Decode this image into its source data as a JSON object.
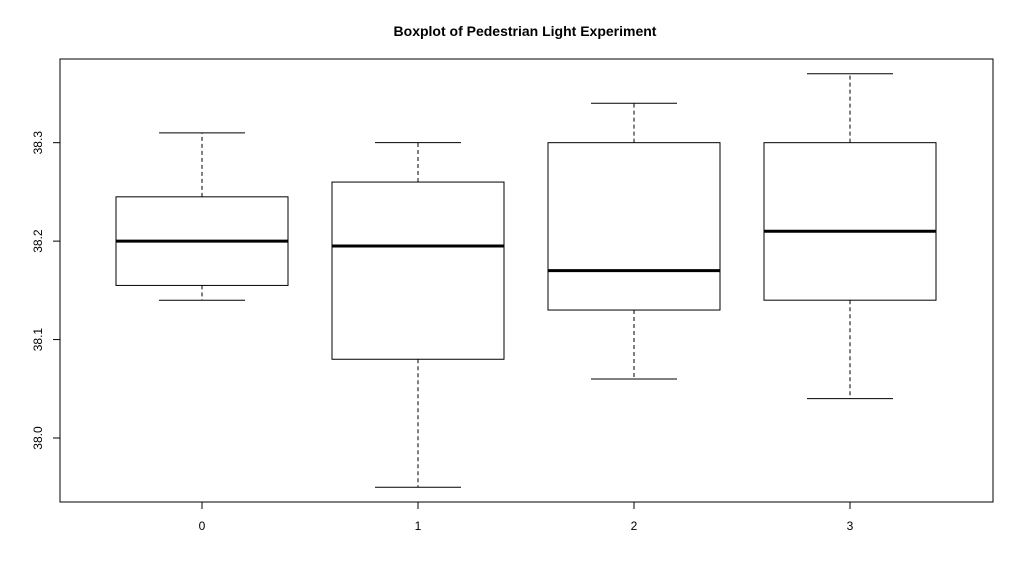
{
  "chart_data": {
    "type": "boxplot",
    "title": "Boxplot of Pedestrian Light Experiment",
    "xlabel": "",
    "ylabel": "",
    "categories": [
      "0",
      "1",
      "2",
      "3"
    ],
    "boxes": [
      {
        "category": "0",
        "whisker_low": 38.14,
        "q1": 38.155,
        "median": 38.2,
        "q3": 38.245,
        "whisker_high": 38.31
      },
      {
        "category": "1",
        "whisker_low": 37.95,
        "q1": 38.08,
        "median": 38.195,
        "q3": 38.26,
        "whisker_high": 38.3
      },
      {
        "category": "2",
        "whisker_low": 38.06,
        "q1": 38.13,
        "median": 38.17,
        "q3": 38.3,
        "whisker_high": 38.34
      },
      {
        "category": "3",
        "whisker_low": 38.04,
        "q1": 38.14,
        "median": 38.21,
        "q3": 38.3,
        "whisker_high": 38.37
      }
    ],
    "y_ticks": [
      "38.0",
      "38.1",
      "38.2",
      "38.3"
    ],
    "ylim": [
      37.935,
      38.385
    ],
    "grid": false,
    "legend": "none"
  }
}
